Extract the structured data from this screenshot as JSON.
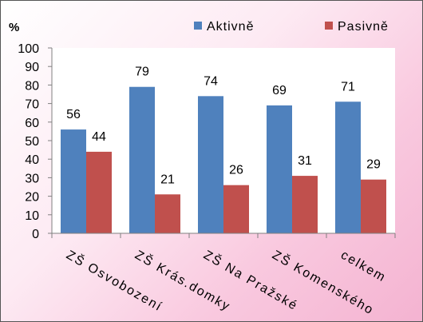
{
  "chart_data": {
    "type": "bar",
    "title": "",
    "ylabel": "%",
    "xlabel": "",
    "ylim": [
      0,
      100
    ],
    "y_ticks": [
      0,
      10,
      20,
      30,
      40,
      50,
      60,
      70,
      80,
      90,
      100
    ],
    "categories": [
      "ZŠ Osvobození",
      "ZŠ Krás.domky",
      "ZŠ Na Pražské",
      "ZŠ Komenského",
      "celkem"
    ],
    "series": [
      {
        "name": "Aktivně",
        "color": "#4f81bd",
        "values": [
          56,
          79,
          74,
          69,
          71
        ]
      },
      {
        "name": "Pasivně",
        "color": "#c0504d",
        "values": [
          44,
          21,
          26,
          31,
          29
        ]
      }
    ],
    "legend_position": "top-right",
    "grid": false,
    "data_labels": true,
    "colors": {
      "plot_background": "#ffffff",
      "axis": "#808080"
    }
  }
}
